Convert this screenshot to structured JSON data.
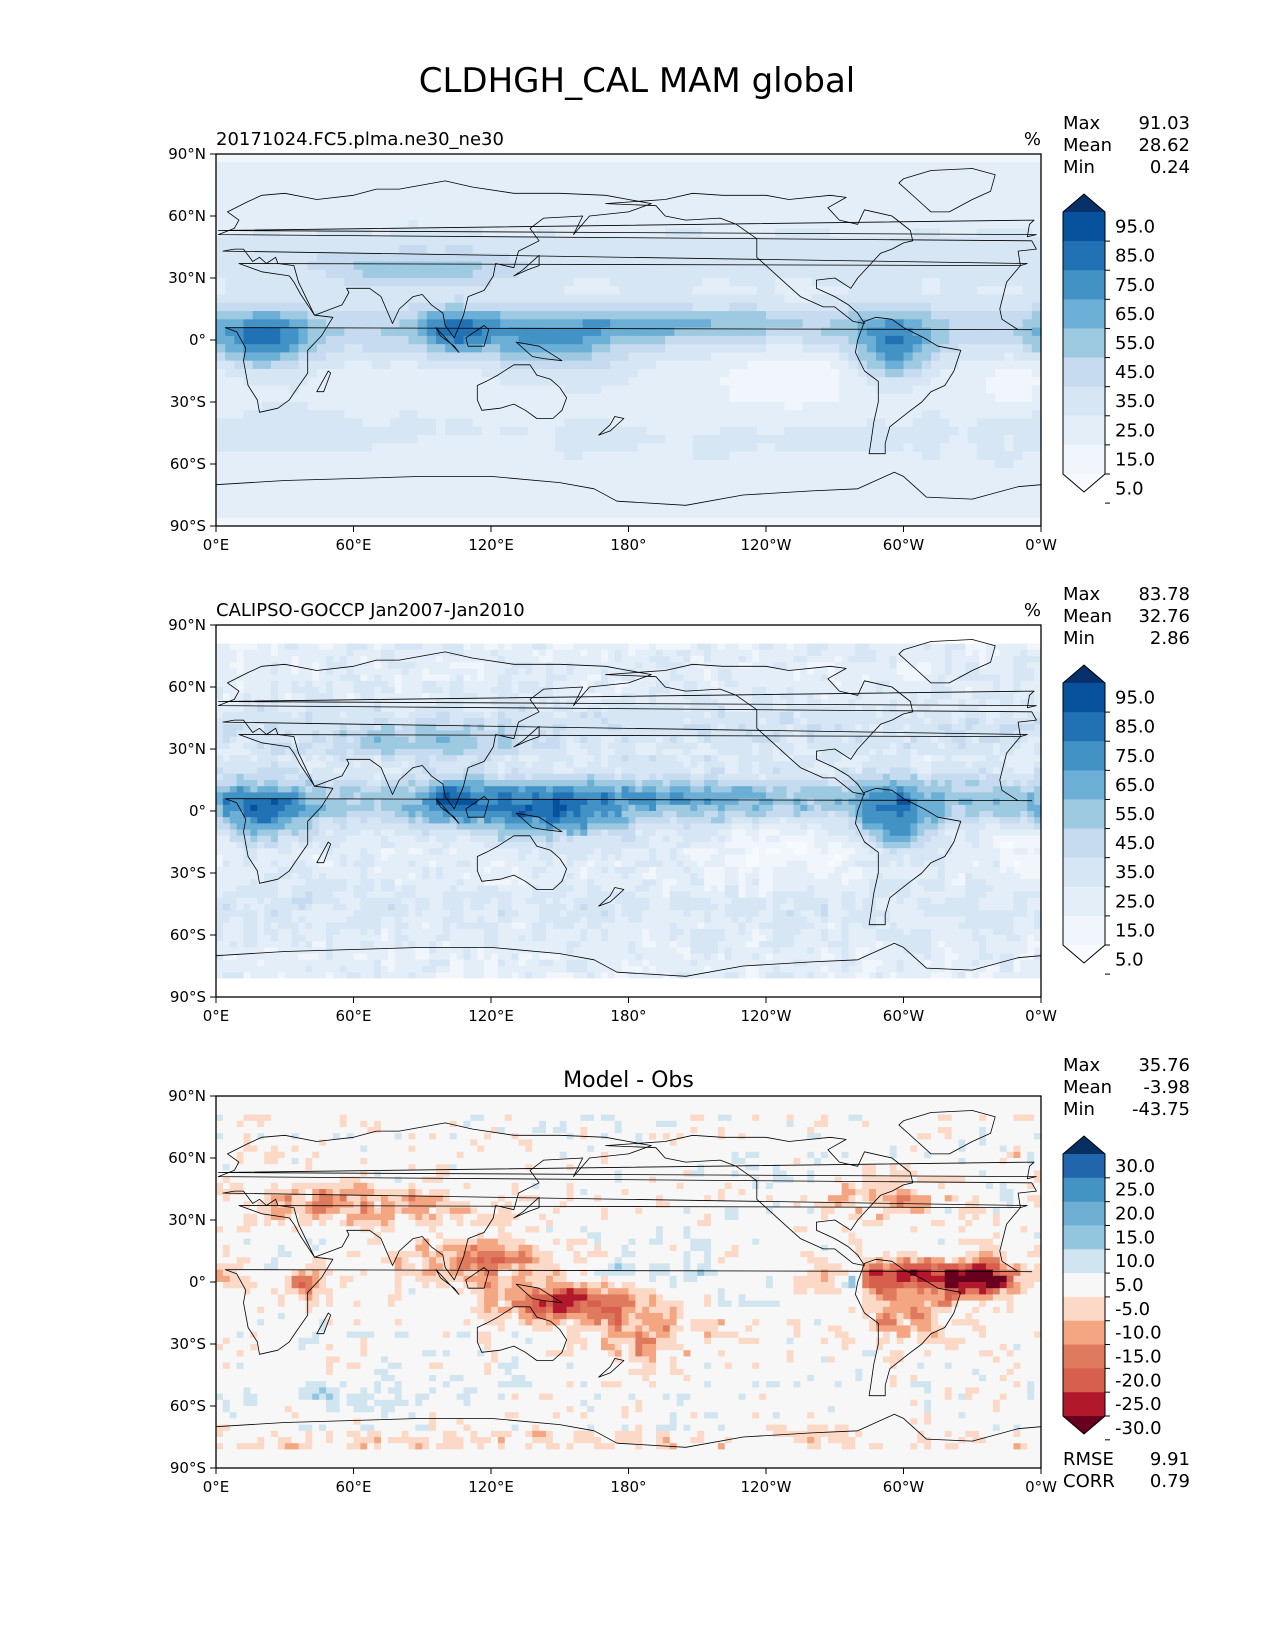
{
  "figure": {
    "title": "CLDHGH_CAL MAM global"
  },
  "axes": {
    "lat_ticks": [
      "90°N",
      "60°N",
      "30°N",
      "0°",
      "30°S",
      "60°S",
      "90°S"
    ],
    "lon_ticks": [
      "0°E",
      "60°E",
      "120°E",
      "180°",
      "120°W",
      "60°W",
      "0°W"
    ]
  },
  "panels": [
    {
      "id": "test",
      "left_title": "20171024.FC5.plma.ne30_ne30",
      "center_title": "",
      "units": "%",
      "stats": [
        {
          "label": "Max",
          "value": "91.03"
        },
        {
          "label": "Mean",
          "value": "28.62"
        },
        {
          "label": "Min",
          "value": "0.24"
        }
      ],
      "colorbar_labels": [
        "95.0",
        "85.0",
        "75.0",
        "65.0",
        "55.0",
        "45.0",
        "35.0",
        "25.0",
        "15.0",
        "5.0"
      ],
      "colorbar_colors": [
        "#08306b",
        "#08519c",
        "#2171b5",
        "#4292c6",
        "#6baed6",
        "#9ecae1",
        "#c6dbef",
        "#d6e6f4",
        "#e3eef8",
        "#f0f6fc",
        "#f7fbff"
      ],
      "bottom_stats": []
    },
    {
      "id": "ref",
      "left_title": "CALIPSO-GOCCP Jan2007-Jan2010",
      "center_title": "",
      "units": "%",
      "stats": [
        {
          "label": "Max",
          "value": "83.78"
        },
        {
          "label": "Mean",
          "value": "32.76"
        },
        {
          "label": "Min",
          "value": "2.86"
        }
      ],
      "colorbar_labels": [
        "95.0",
        "85.0",
        "75.0",
        "65.0",
        "55.0",
        "45.0",
        "35.0",
        "25.0",
        "15.0",
        "5.0"
      ],
      "colorbar_colors": [
        "#08306b",
        "#08519c",
        "#2171b5",
        "#4292c6",
        "#6baed6",
        "#9ecae1",
        "#c6dbef",
        "#d6e6f4",
        "#e3eef8",
        "#f0f6fc",
        "#f7fbff"
      ],
      "bottom_stats": []
    },
    {
      "id": "diff",
      "left_title": "",
      "center_title": "Model - Obs",
      "units": "",
      "stats": [
        {
          "label": "Max",
          "value": "35.76"
        },
        {
          "label": "Mean",
          "value": "-3.98"
        },
        {
          "label": "Min",
          "value": "-43.75"
        }
      ],
      "colorbar_labels": [
        "30.0",
        "25.0",
        "20.0",
        "15.0",
        "10.0",
        "5.0",
        "-5.0",
        "-10.0",
        "-15.0",
        "-20.0",
        "-25.0",
        "-30.0"
      ],
      "colorbar_colors": [
        "#053061",
        "#2166ac",
        "#4393c3",
        "#6eaed2",
        "#92c5de",
        "#d1e5f0",
        "#f7f7f7",
        "#fbd9c6",
        "#f4a582",
        "#e07a5f",
        "#d6604d",
        "#b2182b",
        "#67001f"
      ],
      "bottom_stats": [
        {
          "label": "RMSE",
          "value": "9.91"
        },
        {
          "label": "CORR",
          "value": "0.79"
        }
      ]
    }
  ]
}
